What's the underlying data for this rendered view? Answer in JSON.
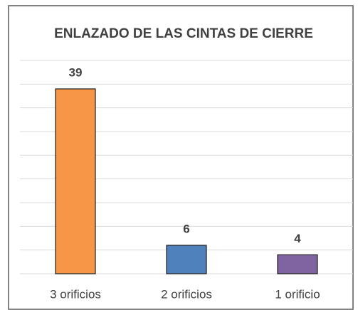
{
  "chart_data": {
    "type": "bar",
    "title": "ENLAZADO DE LAS CINTAS DE CIERRE",
    "categories": [
      "3 orificios",
      "2 orificios",
      "1 orificio"
    ],
    "values": [
      39,
      6,
      4
    ],
    "colors": [
      "#f79646",
      "#4f81bd",
      "#8064a2"
    ],
    "ylim": [
      0,
      45
    ],
    "yticks": [
      0,
      5,
      10,
      15,
      20,
      25,
      30,
      35,
      40,
      45
    ],
    "grid": true
  }
}
